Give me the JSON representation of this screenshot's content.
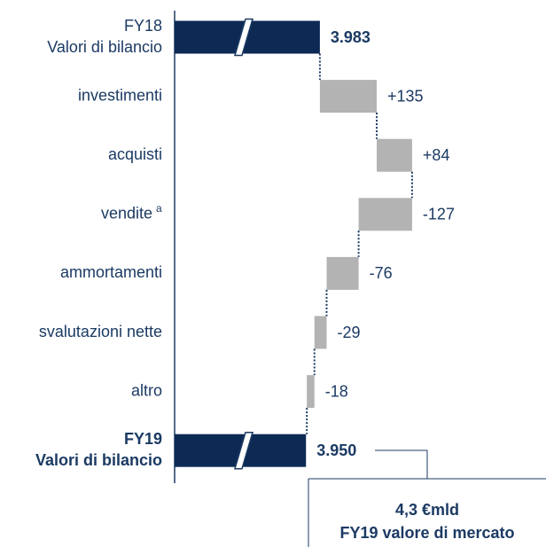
{
  "chart_data": {
    "type": "waterfall",
    "categories": [
      [
        "FY18",
        "Valori di bilancio"
      ],
      [
        "investimenti"
      ],
      [
        "acquisti"
      ],
      [
        "vendite"
      ],
      [
        "ammortamenti"
      ],
      [
        "svalutazioni nette"
      ],
      [
        "altro"
      ],
      [
        "FY19",
        "Valori di bilancio"
      ]
    ],
    "notes": [
      null,
      null,
      null,
      "a",
      null,
      null,
      null,
      null
    ],
    "measure": [
      "total",
      "relative",
      "relative",
      "relative",
      "relative",
      "relative",
      "relative",
      "total"
    ],
    "values": [
      3983,
      135,
      84,
      -127,
      -76,
      -29,
      -18,
      3950
    ],
    "value_labels": [
      "3.983",
      "+135",
      "+84",
      "-127",
      "-76",
      "-29",
      "-18",
      "3.950"
    ],
    "total_color": "#0c2a54",
    "delta_color": "#b3b3b3",
    "xlim": [
      3638,
      4520
    ],
    "axis_break": true,
    "annotation": [
      "4,3 €mld",
      "FY19 valore di mercato"
    ]
  }
}
